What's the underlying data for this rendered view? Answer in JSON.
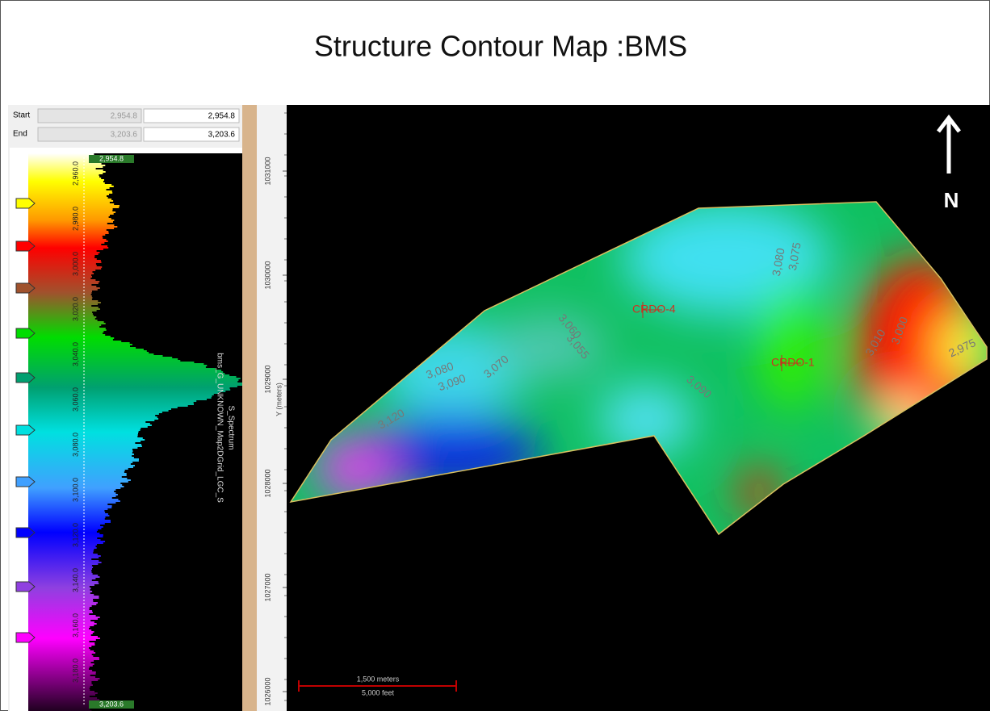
{
  "title": "Structure Contour Map :BMS",
  "range_panel": {
    "start_label": "Start",
    "start_min": "2,954.8",
    "start_value": "2,954.8",
    "end_label": "End",
    "end_min": "3,203.6",
    "end_value": "3,203.6"
  },
  "colorbar": {
    "top_value": "2,954.8",
    "bottom_value": "3,203.6",
    "tick_labels": [
      "2,960.0",
      "2,980.0",
      "3,000.0",
      "3,020.0",
      "3,040.0",
      "3,060.0",
      "3,080.0",
      "3,100.0",
      "3,120.0",
      "3,140.0",
      "3,160.0",
      "3,180.0"
    ],
    "title": "S_Spectrum",
    "subtitle": "bms_G_UNKNOWN_Map2DGrid_LGC_S"
  },
  "map": {
    "y_axis_label": "Y (meters)",
    "y_ticks": [
      "1031000",
      "1030000",
      "1029000",
      "1028000",
      "1027000",
      "1026000"
    ],
    "wells": [
      {
        "name": "CRDO-4"
      },
      {
        "name": "CRDO-1"
      }
    ],
    "contour_labels": [
      "3,080",
      "3,075",
      "3,060",
      "3,055",
      "3,070",
      "3,080",
      "3,090",
      "3,120",
      "3,090",
      "3,010",
      "3,000",
      "2,975"
    ],
    "scale_bar": {
      "metric": "1,500 meters",
      "imperial": "5,000 feet"
    },
    "north_label": "N"
  }
}
